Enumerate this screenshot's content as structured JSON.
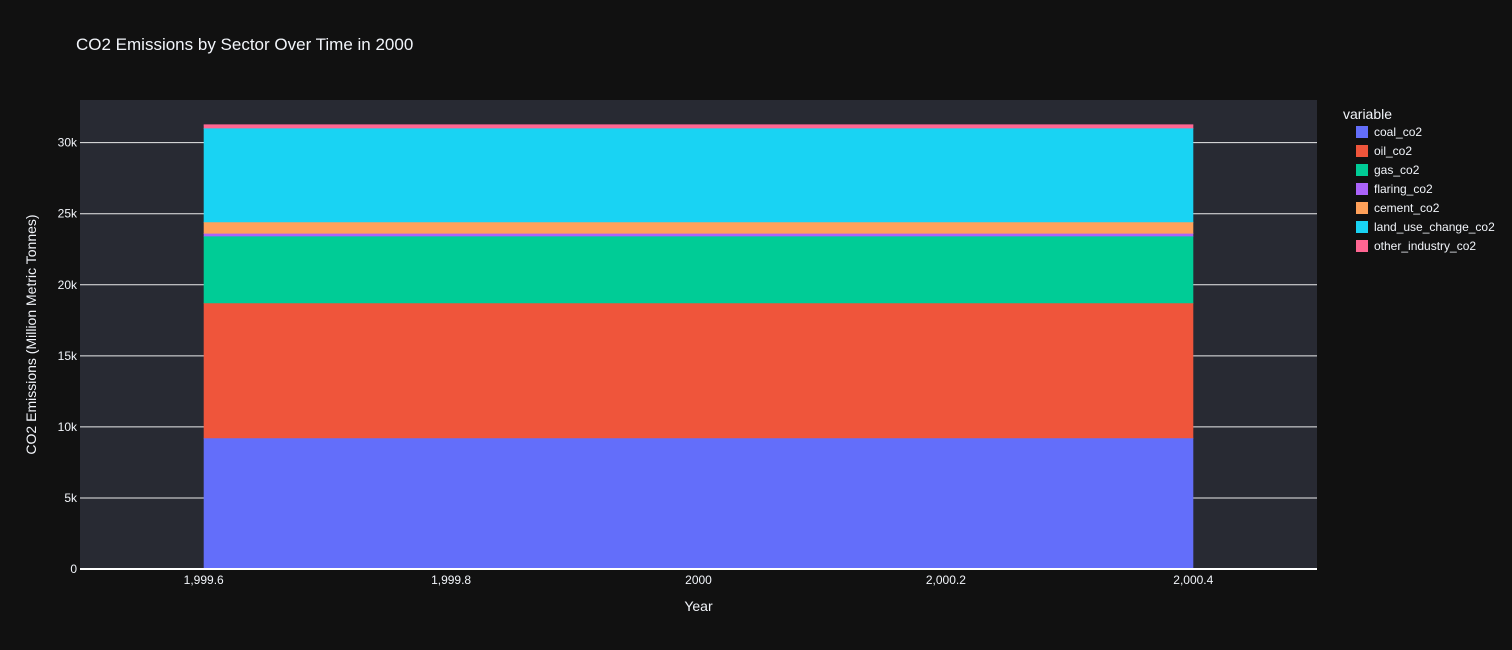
{
  "chart_data": {
    "type": "area",
    "title": "CO2 Emissions by Sector Over Time in 2000",
    "xlabel": "Year",
    "ylabel": "CO2 Emissions (Million Metric Tonnes)",
    "x": [
      1999.6,
      2000.4
    ],
    "xlim": [
      1999.5,
      2000.5
    ],
    "ylim": [
      0,
      33000
    ],
    "x_ticks": [
      1999.6,
      1999.8,
      2000,
      2000.2,
      2000.4
    ],
    "x_tick_labels": [
      "1,999.6",
      "1,999.8",
      "2000",
      "2,000.2",
      "2,000.4"
    ],
    "y_ticks": [
      0,
      5000,
      10000,
      15000,
      20000,
      25000,
      30000
    ],
    "y_tick_labels": [
      "0",
      "5k",
      "10k",
      "15k",
      "20k",
      "25k",
      "30k"
    ],
    "stacked": true,
    "grid": true,
    "legend_title": "variable",
    "legend_position": "right",
    "series": [
      {
        "name": "coal_co2",
        "color": "#636efa",
        "values": [
          9200,
          9200
        ]
      },
      {
        "name": "oil_co2",
        "color": "#ef553b",
        "values": [
          9500,
          9500
        ]
      },
      {
        "name": "gas_co2",
        "color": "#00cc96",
        "values": [
          4700,
          4700
        ]
      },
      {
        "name": "flaring_co2",
        "color": "#ab63fa",
        "values": [
          200,
          200
        ]
      },
      {
        "name": "cement_co2",
        "color": "#ffa15a",
        "values": [
          800,
          800
        ]
      },
      {
        "name": "land_use_change_co2",
        "color": "#19d3f3",
        "values": [
          6600,
          6600
        ]
      },
      {
        "name": "other_industry_co2",
        "color": "#ff6692",
        "values": [
          250,
          250
        ]
      }
    ]
  },
  "colors": {
    "paper_bg": "#111111",
    "plot_bg": "#282a33",
    "grid": "#ffffff",
    "text": "#f2f5fa"
  }
}
